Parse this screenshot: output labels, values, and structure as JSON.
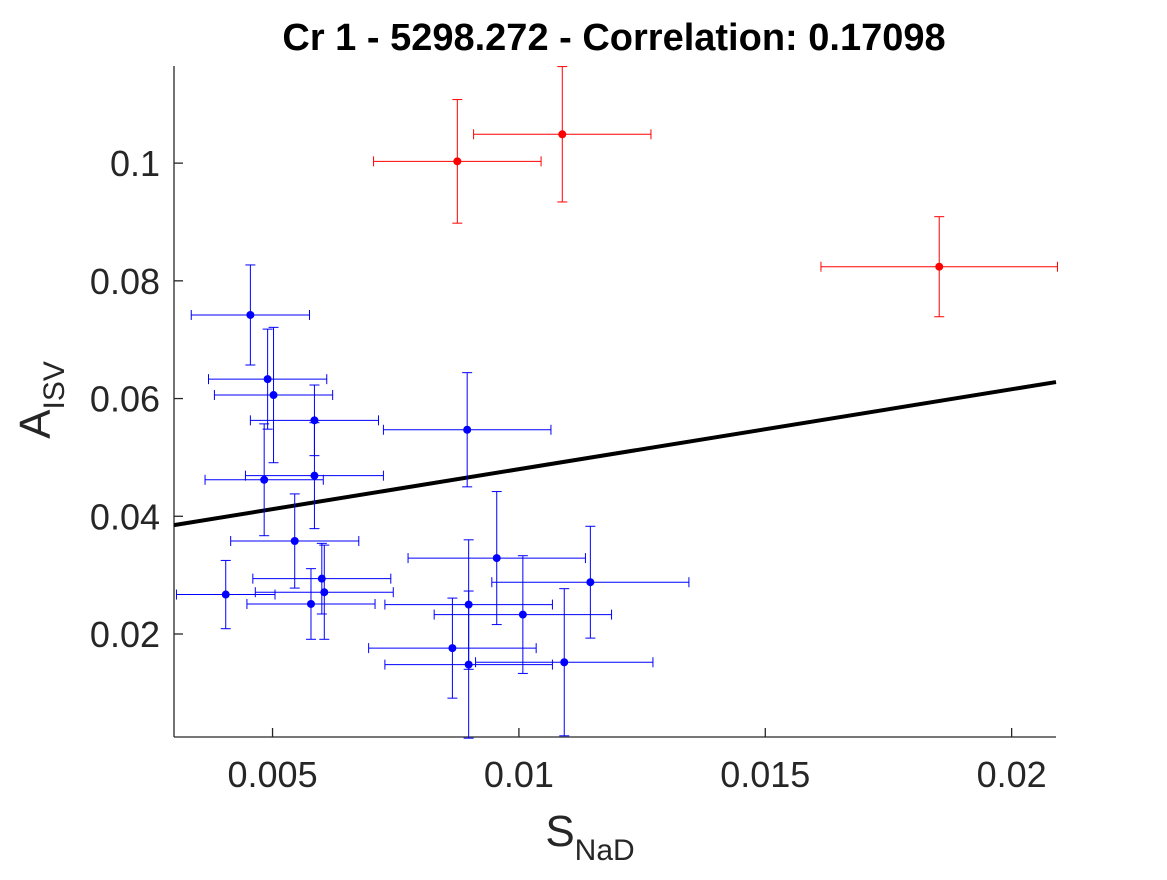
{
  "colors": {
    "blue_series": "#0000ff",
    "red_series": "#ff0000",
    "fit_line": "#000000",
    "axis": "#262626"
  },
  "chart_data": {
    "type": "scatter",
    "title": "Cr 1 - 5298.272 - Correlation: 0.17098",
    "xlabel": {
      "main": "S",
      "sub": "NaD"
    },
    "ylabel": {
      "main": "A",
      "sub": "ISV"
    },
    "xlim": [
      0.003,
      0.0209
    ],
    "ylim": [
      0.0025,
      0.1165
    ],
    "xticks": [
      0.005,
      0.01,
      0.015,
      0.02
    ],
    "xtick_labels": [
      "0.005",
      "0.01",
      "0.015",
      "0.02"
    ],
    "yticks": [
      0.02,
      0.04,
      0.06,
      0.08,
      0.1
    ],
    "ytick_labels": [
      "0.02",
      "0.04",
      "0.06",
      "0.08",
      "0.1"
    ],
    "grid": false,
    "fit_line": {
      "x": [
        0.003,
        0.0209
      ],
      "y": [
        0.0385,
        0.0628
      ]
    },
    "series": [
      {
        "color": "blue",
        "points": [
          {
            "x": 0.00455,
            "y": 0.0742,
            "xerr": 0.0012,
            "yerr": 0.0085
          },
          {
            "x": 0.0049,
            "y": 0.0633,
            "xerr": 0.0012,
            "yerr": 0.0085
          },
          {
            "x": 0.00502,
            "y": 0.0606,
            "xerr": 0.0012,
            "yerr": 0.0115
          },
          {
            "x": 0.00585,
            "y": 0.0563,
            "xerr": 0.0013,
            "yerr": 0.006
          },
          {
            "x": 0.00483,
            "y": 0.0462,
            "xerr": 0.0012,
            "yerr": 0.0095
          },
          {
            "x": 0.00585,
            "y": 0.0469,
            "xerr": 0.0014,
            "yerr": 0.009
          },
          {
            "x": 0.00895,
            "y": 0.0547,
            "xerr": 0.0017,
            "yerr": 0.0097
          },
          {
            "x": 0.00545,
            "y": 0.0358,
            "xerr": 0.0013,
            "yerr": 0.008
          },
          {
            "x": 0.00405,
            "y": 0.0267,
            "xerr": 0.001,
            "yerr": 0.0058
          },
          {
            "x": 0.00578,
            "y": 0.0251,
            "xerr": 0.0013,
            "yerr": 0.006
          },
          {
            "x": 0.006,
            "y": 0.0294,
            "xerr": 0.0014,
            "yerr": 0.006
          },
          {
            "x": 0.00605,
            "y": 0.0271,
            "xerr": 0.0014,
            "yerr": 0.008
          },
          {
            "x": 0.00865,
            "y": 0.0176,
            "xerr": 0.0017,
            "yerr": 0.0085
          },
          {
            "x": 0.00898,
            "y": 0.025,
            "xerr": 0.0017,
            "yerr": 0.011
          },
          {
            "x": 0.00898,
            "y": 0.0148,
            "xerr": 0.0017,
            "yerr": 0.0125
          },
          {
            "x": 0.00955,
            "y": 0.0329,
            "xerr": 0.0018,
            "yerr": 0.0113
          },
          {
            "x": 0.01008,
            "y": 0.0233,
            "xerr": 0.0018,
            "yerr": 0.01
          },
          {
            "x": 0.01092,
            "y": 0.0152,
            "xerr": 0.0018,
            "yerr": 0.0125
          },
          {
            "x": 0.01145,
            "y": 0.0288,
            "xerr": 0.002,
            "yerr": 0.0095
          }
        ]
      },
      {
        "color": "red",
        "points": [
          {
            "x": 0.00875,
            "y": 0.1003,
            "xerr": 0.0017,
            "yerr": 0.0105
          },
          {
            "x": 0.01088,
            "y": 0.1049,
            "xerr": 0.0018,
            "yerr": 0.0115
          },
          {
            "x": 0.01853,
            "y": 0.0824,
            "xerr": 0.0024,
            "yerr": 0.0085
          }
        ]
      }
    ]
  }
}
